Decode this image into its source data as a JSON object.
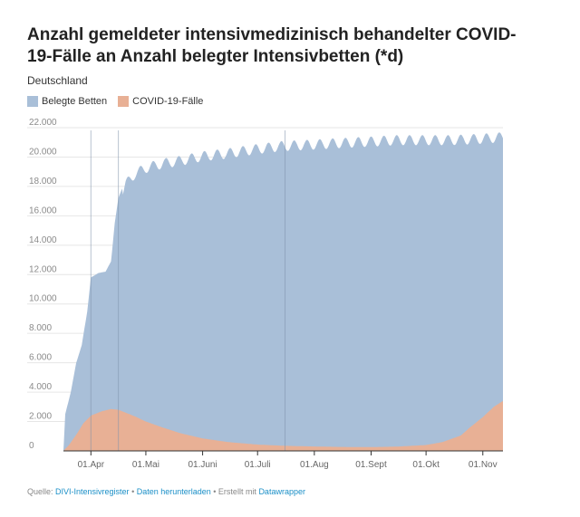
{
  "title": "Anzahl gemeldeter intensivmedizinisch behandelter COVID-19-Fälle an Anzahl belegter Intensivbetten (*d)",
  "subtitle": "Deutschland",
  "footer": {
    "prefix": "Quelle: ",
    "source_link": "DIVI-Intensivregister",
    "sep1": " • ",
    "download_link": "Daten herunterladen",
    "sep2": " • Erstellt mit ",
    "tool_link": "Datawrapper"
  },
  "colors": {
    "belegte": "#a9bfd8",
    "covid": "#e8b095",
    "axis": "#333333",
    "grid": "#e6e6e6"
  },
  "chart_data": {
    "type": "area",
    "title": "Anzahl gemeldeter intensivmedizinisch behandelter COVID-19-Fälle an Anzahl belegter Intensivbetten (*d)",
    "subtitle": "Deutschland",
    "ylim": [
      0,
      22000
    ],
    "xlim": [
      "2020-03-17",
      "2020-11-12"
    ],
    "grid": true,
    "legend_position": "top-left",
    "y_ticks": [
      {
        "value": 0,
        "label": "0"
      },
      {
        "value": 2000,
        "label": "2.000"
      },
      {
        "value": 4000,
        "label": "4.000"
      },
      {
        "value": 6000,
        "label": "6.000"
      },
      {
        "value": 8000,
        "label": "8.000"
      },
      {
        "value": 10000,
        "label": "10.000"
      },
      {
        "value": 12000,
        "label": "12.000"
      },
      {
        "value": 14000,
        "label": "14.000"
      },
      {
        "value": 16000,
        "label": "16.000"
      },
      {
        "value": 18000,
        "label": "18.000"
      },
      {
        "value": 20000,
        "label": "20.000"
      },
      {
        "value": 22000,
        "label": "22.000"
      }
    ],
    "x_ticks": [
      {
        "date": "2020-04-01",
        "label": "01.Apr"
      },
      {
        "date": "2020-05-01",
        "label": "01.Mai"
      },
      {
        "date": "2020-06-01",
        "label": "01.Juni"
      },
      {
        "date": "2020-07-01",
        "label": "01.Juli"
      },
      {
        "date": "2020-08-01",
        "label": "01.Aug"
      },
      {
        "date": "2020-09-01",
        "label": "01.Sept"
      },
      {
        "date": "2020-10-01",
        "label": "01.Okt"
      },
      {
        "date": "2020-11-01",
        "label": "01.Nov"
      }
    ],
    "series": [
      {
        "name": "Belegte Betten",
        "color": "#a9bfd8",
        "points": [
          [
            "2020-03-17",
            0
          ],
          [
            "2020-03-18",
            2500
          ],
          [
            "2020-03-21",
            4000
          ],
          [
            "2020-03-24",
            6000
          ],
          [
            "2020-03-27",
            7200
          ],
          [
            "2020-03-30",
            9500
          ],
          [
            "2020-04-01",
            11800
          ],
          [
            "2020-04-05",
            12100
          ],
          [
            "2020-04-09",
            12200
          ],
          [
            "2020-04-12",
            12900
          ],
          [
            "2020-04-14",
            15500
          ],
          [
            "2020-04-16",
            17200
          ],
          [
            "2020-04-20",
            18500
          ],
          [
            "2020-04-25",
            19200
          ],
          [
            "2020-05-01",
            19600
          ],
          [
            "2020-05-10",
            19900
          ],
          [
            "2020-05-20",
            20100
          ],
          [
            "2020-06-01",
            20400
          ],
          [
            "2020-06-15",
            20600
          ],
          [
            "2020-07-01",
            20900
          ],
          [
            "2020-07-15",
            21100
          ],
          [
            "2020-08-01",
            21200
          ],
          [
            "2020-08-15",
            21300
          ],
          [
            "2020-09-01",
            21400
          ],
          [
            "2020-09-15",
            21500
          ],
          [
            "2020-10-01",
            21500
          ],
          [
            "2020-10-15",
            21500
          ],
          [
            "2020-11-01",
            21600
          ],
          [
            "2020-11-12",
            21700
          ]
        ],
        "weekly_dip": 700
      },
      {
        "name": "COVID-19-Fälle",
        "color": "#e8b095",
        "points": [
          [
            "2020-03-17",
            0
          ],
          [
            "2020-03-20",
            400
          ],
          [
            "2020-03-24",
            1100
          ],
          [
            "2020-03-28",
            1900
          ],
          [
            "2020-04-01",
            2400
          ],
          [
            "2020-04-07",
            2700
          ],
          [
            "2020-04-12",
            2850
          ],
          [
            "2020-04-16",
            2800
          ],
          [
            "2020-04-20",
            2600
          ],
          [
            "2020-04-25",
            2350
          ],
          [
            "2020-05-01",
            2000
          ],
          [
            "2020-05-10",
            1600
          ],
          [
            "2020-05-20",
            1200
          ],
          [
            "2020-06-01",
            850
          ],
          [
            "2020-06-15",
            600
          ],
          [
            "2020-07-01",
            430
          ],
          [
            "2020-07-15",
            350
          ],
          [
            "2020-08-01",
            300
          ],
          [
            "2020-08-15",
            270
          ],
          [
            "2020-09-01",
            260
          ],
          [
            "2020-09-15",
            290
          ],
          [
            "2020-10-01",
            400
          ],
          [
            "2020-10-10",
            600
          ],
          [
            "2020-10-20",
            1050
          ],
          [
            "2020-10-25",
            1600
          ],
          [
            "2020-11-01",
            2300
          ],
          [
            "2020-11-07",
            3000
          ],
          [
            "2020-11-12",
            3400
          ]
        ]
      }
    ]
  }
}
